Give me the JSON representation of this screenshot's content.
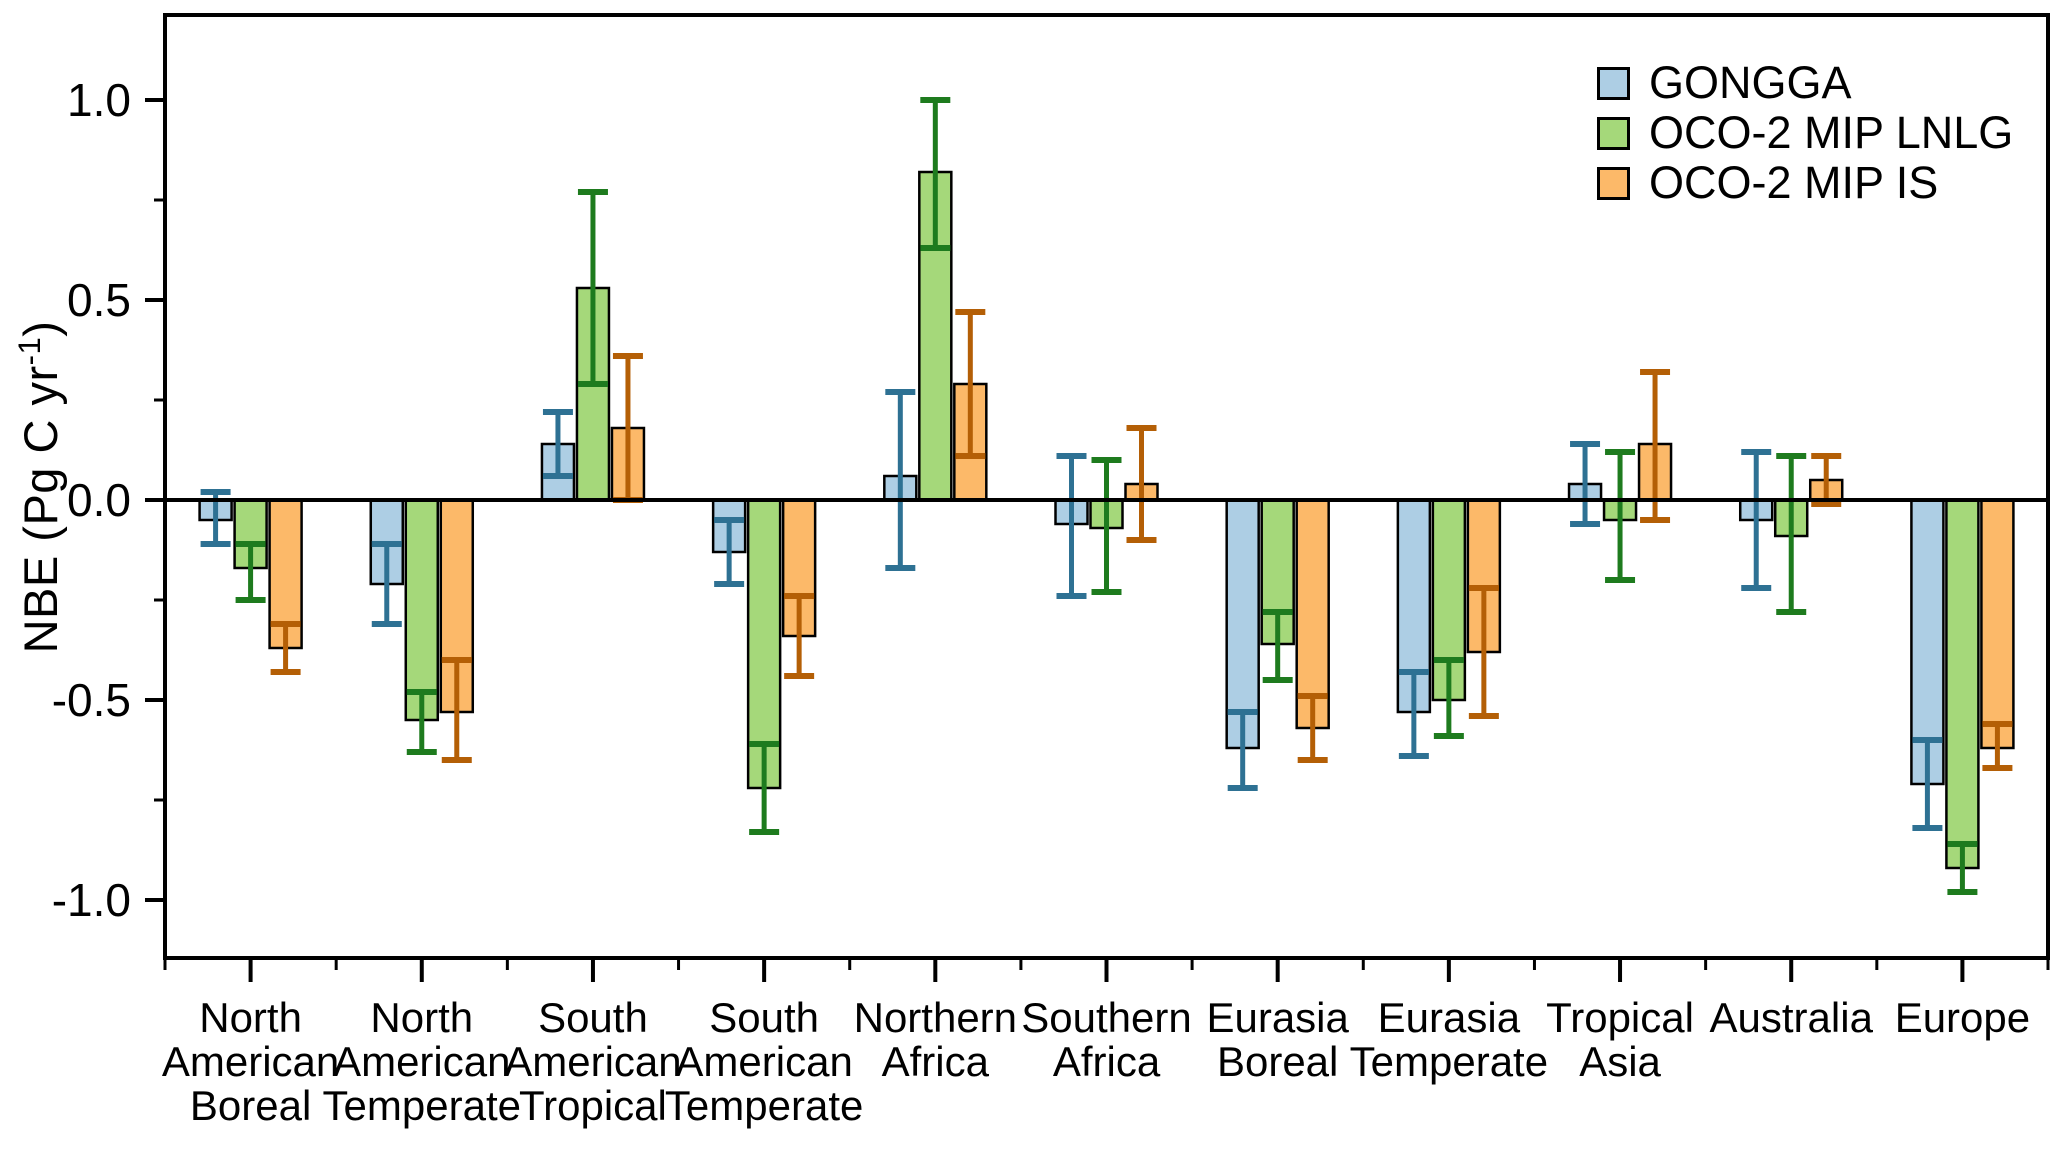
{
  "chart_data": {
    "type": "bar",
    "title": "",
    "ylabel": "NBE (Pg C yr-1)",
    "ylabel_prefix": "NBE (Pg C yr",
    "ylabel_sup": "-1",
    "ylabel_suffix": ")",
    "ylim": [
      -1.15,
      1.21
    ],
    "grid": false,
    "legend_position": "top-right",
    "axis_color": "#000000",
    "yticks": [
      {
        "label": "1.0",
        "value": 1.0
      },
      {
        "label": "0.5",
        "value": 0.5
      },
      {
        "label": "0.0",
        "value": 0.0
      },
      {
        "label": "-0.5",
        "value": -0.5
      },
      {
        "label": "-1.0",
        "value": -1.0
      }
    ],
    "minor_yticks": [
      0.75,
      0.25,
      -0.25,
      -0.75
    ],
    "categories": [
      {
        "name": "North American Boreal",
        "label_lines": [
          "North",
          "American",
          "Boreal"
        ]
      },
      {
        "name": "North American Temperate",
        "label_lines": [
          "North",
          "American",
          "Temperate"
        ]
      },
      {
        "name": "South American Tropical",
        "label_lines": [
          "South",
          "American",
          "Tropical"
        ]
      },
      {
        "name": "South American Temperate",
        "label_lines": [
          "South",
          "American",
          "Temperate"
        ]
      },
      {
        "name": "Northern Africa",
        "label_lines": [
          "Northern",
          "Africa"
        ]
      },
      {
        "name": "Southern Africa",
        "label_lines": [
          "Southern",
          "Africa"
        ]
      },
      {
        "name": "Eurasia Boreal",
        "label_lines": [
          "Eurasia",
          "Boreal"
        ]
      },
      {
        "name": "Eurasia Temperate",
        "label_lines": [
          "Eurasia",
          "Temperate"
        ]
      },
      {
        "name": "Tropical Asia",
        "label_lines": [
          "Tropical",
          "Asia"
        ]
      },
      {
        "name": "Australia",
        "label_lines": [
          "Australia"
        ]
      },
      {
        "name": "Europe",
        "label_lines": [
          "Europe"
        ]
      }
    ],
    "series": [
      {
        "name": "GONGGA",
        "fill": "#ADCEE4",
        "error_color": "#2E7193",
        "values": [
          -0.05,
          -0.21,
          0.14,
          -0.13,
          0.06,
          -0.06,
          -0.62,
          -0.53,
          0.04,
          -0.05,
          -0.71
        ],
        "upper": [
          0.02,
          -0.11,
          0.22,
          -0.05,
          0.27,
          0.11,
          -0.53,
          -0.43,
          0.14,
          0.12,
          -0.6
        ],
        "lower": [
          -0.11,
          -0.31,
          0.06,
          -0.21,
          -0.17,
          -0.24,
          -0.72,
          -0.64,
          -0.06,
          -0.22,
          -0.82
        ]
      },
      {
        "name": "OCO-2 MIP LNLG",
        "fill": "#A5D87A",
        "error_color": "#1E7B1E",
        "values": [
          -0.17,
          -0.55,
          0.53,
          -0.72,
          0.82,
          -0.07,
          -0.36,
          -0.5,
          -0.05,
          -0.09,
          -0.92
        ],
        "upper": [
          -0.11,
          -0.48,
          0.77,
          -0.61,
          1.0,
          0.1,
          -0.28,
          -0.4,
          0.12,
          0.11,
          -0.86
        ],
        "lower": [
          -0.25,
          -0.63,
          0.29,
          -0.83,
          0.63,
          -0.23,
          -0.45,
          -0.59,
          -0.2,
          -0.28,
          -0.98
        ]
      },
      {
        "name": "OCO-2 MIP IS",
        "fill": "#FCB969",
        "error_color": "#B45F06",
        "values": [
          -0.37,
          -0.53,
          0.18,
          -0.34,
          0.29,
          0.04,
          -0.57,
          -0.38,
          0.14,
          0.05,
          -0.62
        ],
        "upper": [
          -0.31,
          -0.4,
          0.36,
          -0.24,
          0.47,
          0.18,
          -0.49,
          -0.22,
          0.32,
          0.11,
          -0.56
        ],
        "lower": [
          -0.43,
          -0.65,
          0.0,
          -0.44,
          0.11,
          -0.1,
          -0.65,
          -0.54,
          -0.05,
          -0.01,
          -0.67
        ]
      }
    ]
  }
}
